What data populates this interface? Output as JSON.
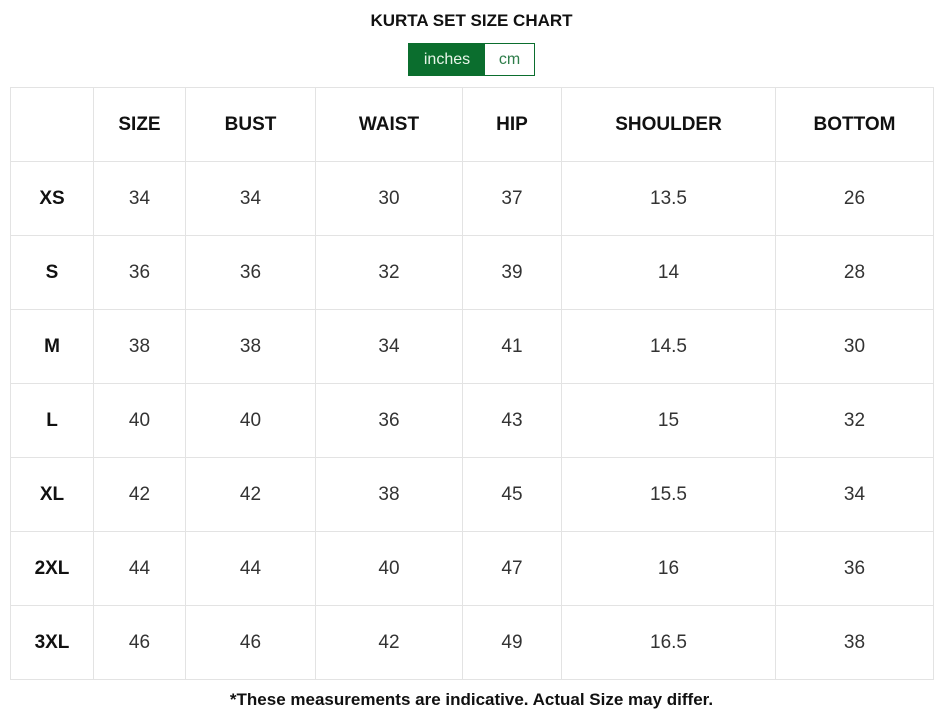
{
  "title": "KURTA SET SIZE CHART",
  "units": {
    "options": [
      "inches",
      "cm"
    ],
    "selected": "inches"
  },
  "colors": {
    "accent": "#0b6e2e"
  },
  "table": {
    "headers": [
      "",
      "SIZE",
      "BUST",
      "WAIST",
      "HIP",
      "SHOULDER",
      "BOTTOM"
    ],
    "rows": [
      [
        "XS",
        "34",
        "34",
        "30",
        "37",
        "13.5",
        "26"
      ],
      [
        "S",
        "36",
        "36",
        "32",
        "39",
        "14",
        "28"
      ],
      [
        "M",
        "38",
        "38",
        "34",
        "41",
        "14.5",
        "30"
      ],
      [
        "L",
        "40",
        "40",
        "36",
        "43",
        "15",
        "32"
      ],
      [
        "XL",
        "42",
        "42",
        "38",
        "45",
        "15.5",
        "34"
      ],
      [
        "2XL",
        "44",
        "44",
        "40",
        "47",
        "16",
        "36"
      ],
      [
        "3XL",
        "46",
        "46",
        "42",
        "49",
        "16.5",
        "38"
      ]
    ]
  },
  "note": "*These measurements are indicative. Actual Size may differ."
}
